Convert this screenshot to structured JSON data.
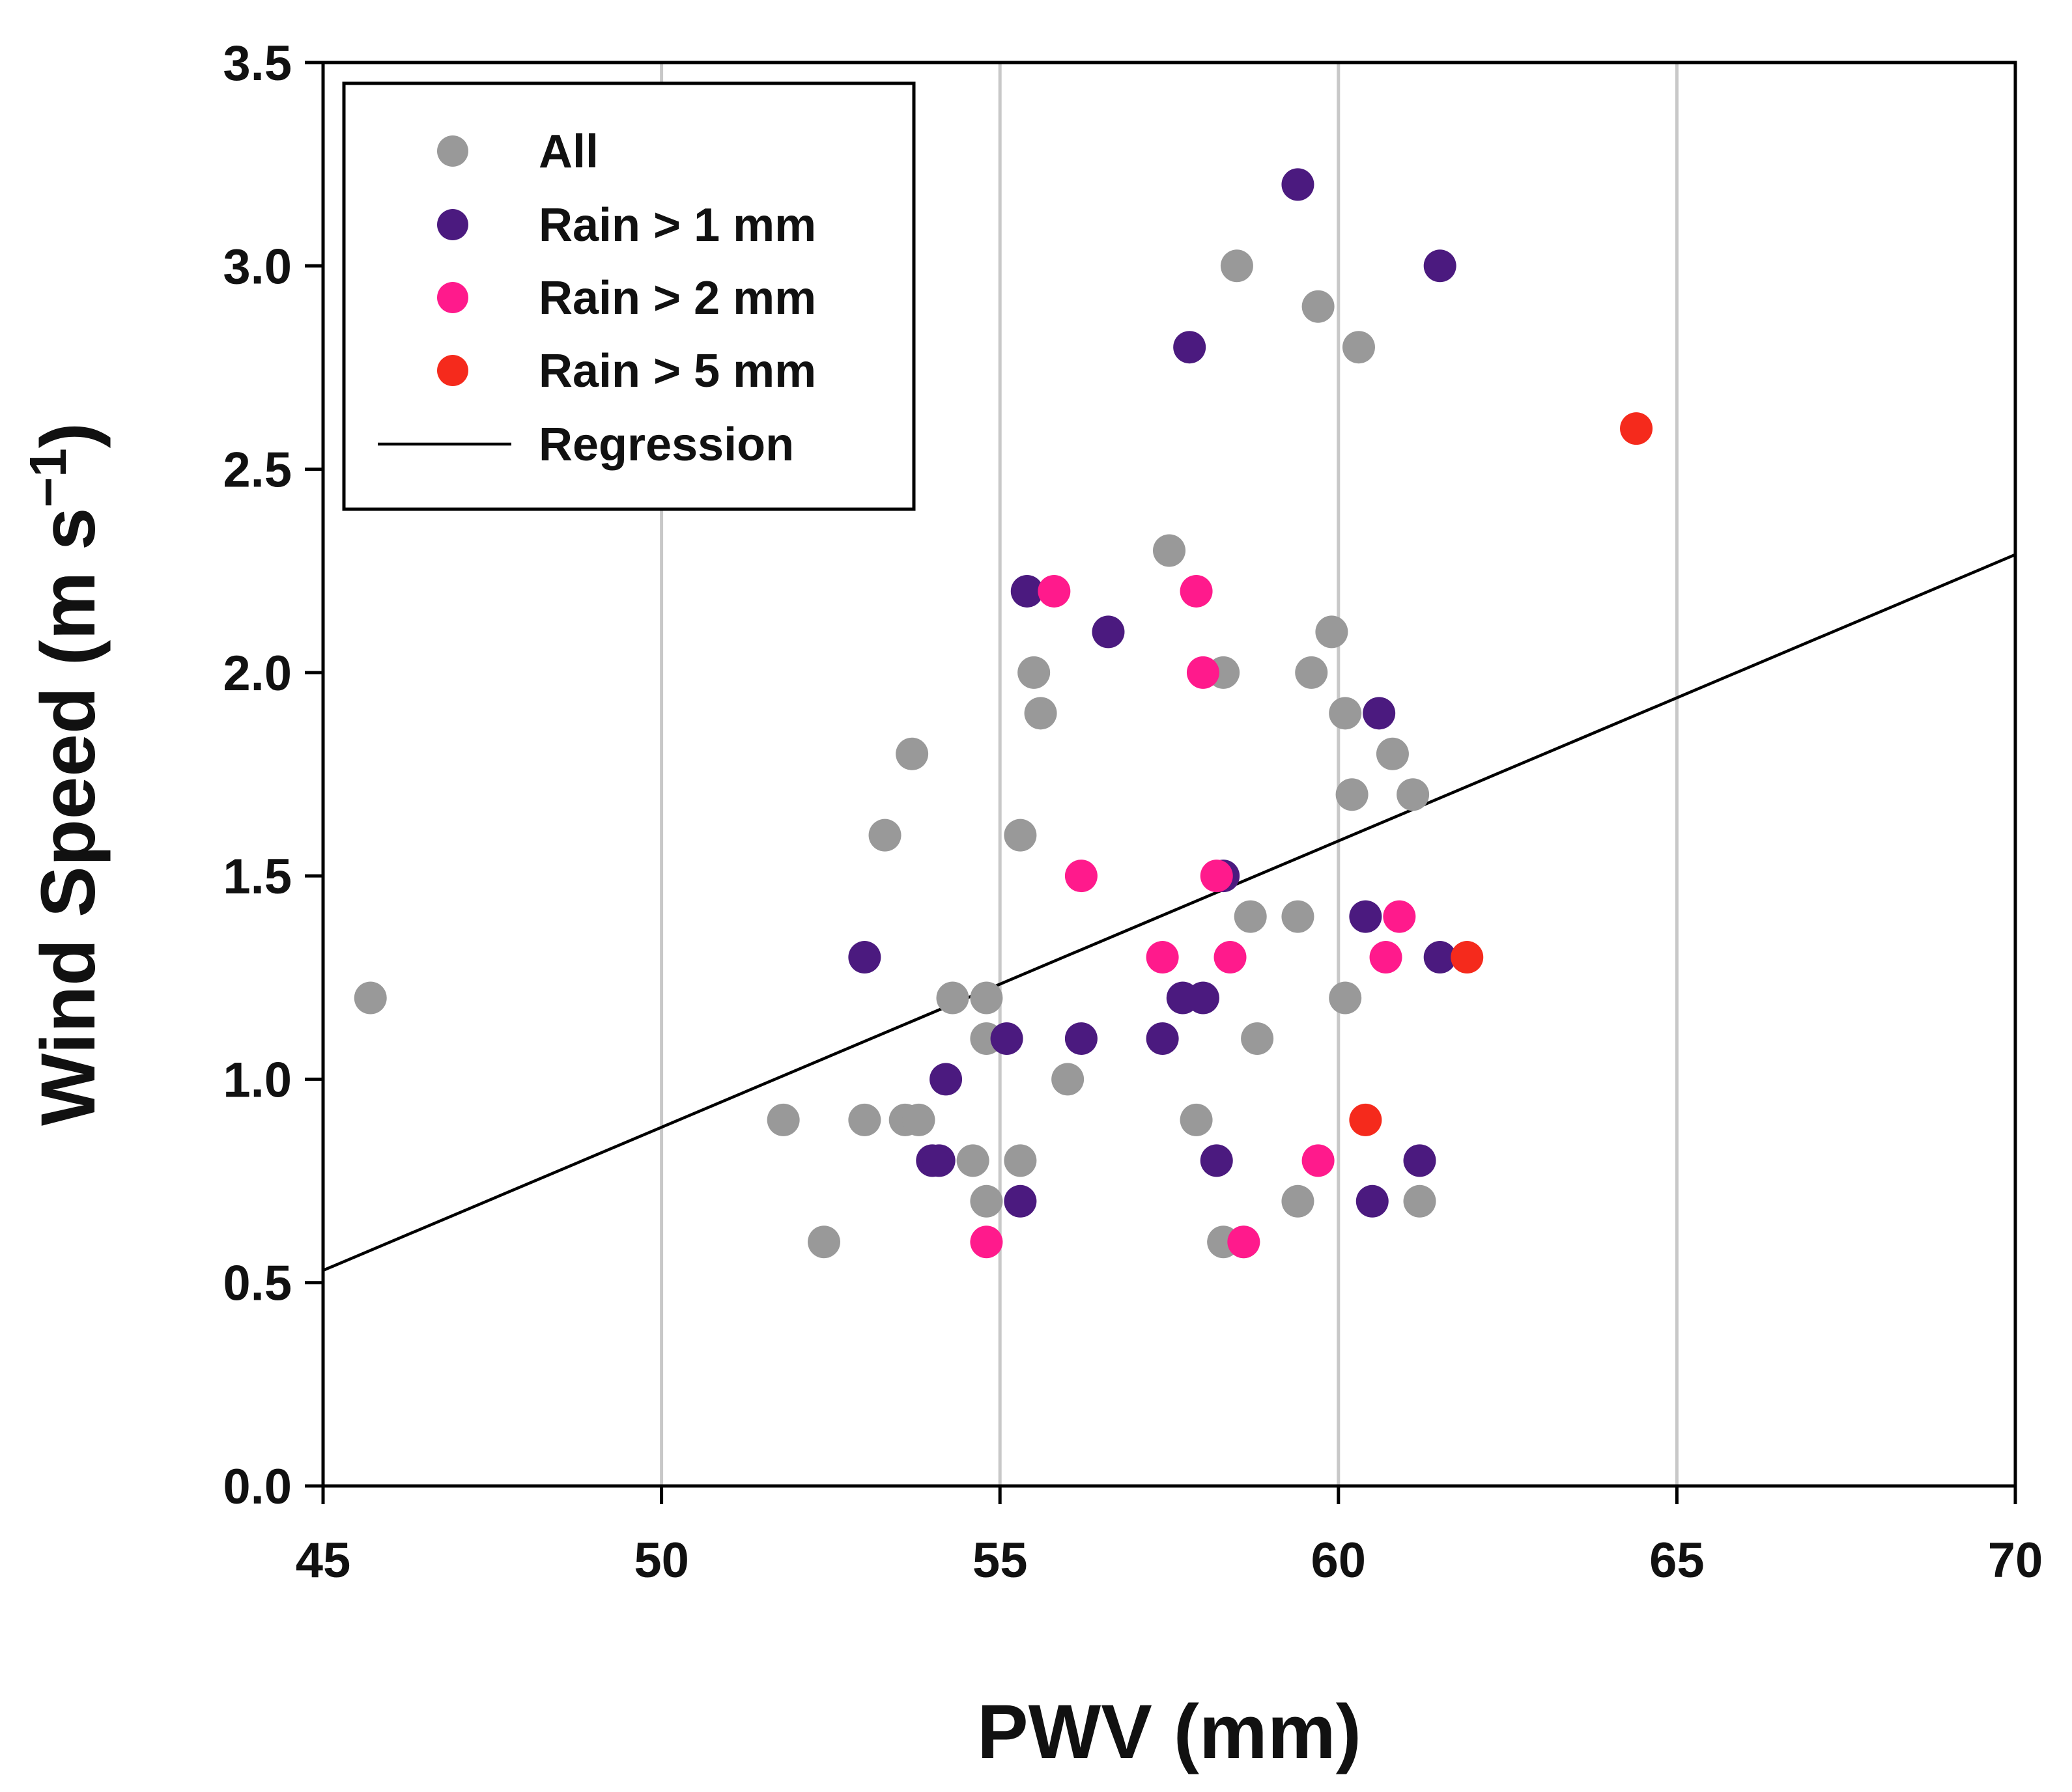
{
  "chart_data": {
    "type": "scatter",
    "title": "",
    "xlabel": "PWV (mm)",
    "ylabel": {
      "main": "Wind Speed (m s",
      "sup": "−1",
      "close": ")"
    },
    "xlim": [
      45,
      70
    ],
    "ylim": [
      0,
      3.5
    ],
    "x_ticks": [
      "45",
      "50",
      "55",
      "60",
      "65",
      "70"
    ],
    "y_ticks": [
      "0.0",
      "0.5",
      "1.0",
      "1.5",
      "2.0",
      "2.5",
      "3.0",
      "3.5"
    ],
    "vertical_grid": true,
    "legend_position": "top-left",
    "colors": {
      "all": "#999999",
      "rain1": "#4b1a7f",
      "rain2": "#ff1a8c",
      "rain5": "#f52a1c",
      "regression": "#000000"
    },
    "series": [
      {
        "name": "All",
        "key": "all",
        "points": [
          [
            45.7,
            1.2
          ],
          [
            51.8,
            0.9
          ],
          [
            52.4,
            0.6
          ],
          [
            53.0,
            0.9
          ],
          [
            53.3,
            1.6
          ],
          [
            53.6,
            0.9
          ],
          [
            53.7,
            1.8
          ],
          [
            53.8,
            0.9
          ],
          [
            54.3,
            1.2
          ],
          [
            54.6,
            0.8
          ],
          [
            54.8,
            1.2
          ],
          [
            54.8,
            1.1
          ],
          [
            54.8,
            0.7
          ],
          [
            55.3,
            1.6
          ],
          [
            55.3,
            0.8
          ],
          [
            55.5,
            2.0
          ],
          [
            55.6,
            1.9
          ],
          [
            56.0,
            1.0
          ],
          [
            57.5,
            2.3
          ],
          [
            57.9,
            0.9
          ],
          [
            58.3,
            2.0
          ],
          [
            58.3,
            0.6
          ],
          [
            58.5,
            3.0
          ],
          [
            58.6,
            0.6
          ],
          [
            58.7,
            1.4
          ],
          [
            58.8,
            1.1
          ],
          [
            59.4,
            1.4
          ],
          [
            59.4,
            0.7
          ],
          [
            59.6,
            2.0
          ],
          [
            59.7,
            2.9
          ],
          [
            59.9,
            2.1
          ],
          [
            60.1,
            1.9
          ],
          [
            60.1,
            1.2
          ],
          [
            60.2,
            1.7
          ],
          [
            60.3,
            2.8
          ],
          [
            60.8,
            1.8
          ],
          [
            61.1,
            1.7
          ],
          [
            61.2,
            0.7
          ]
        ]
      },
      {
        "name": "Rain > 1 mm",
        "key": "rain1",
        "points": [
          [
            53.0,
            1.3
          ],
          [
            54.0,
            0.8
          ],
          [
            54.1,
            0.8
          ],
          [
            54.2,
            1.0
          ],
          [
            55.1,
            1.1
          ],
          [
            55.3,
            0.7
          ],
          [
            55.4,
            2.2
          ],
          [
            56.2,
            1.1
          ],
          [
            56.6,
            2.1
          ],
          [
            57.4,
            1.1
          ],
          [
            57.7,
            1.2
          ],
          [
            57.8,
            2.8
          ],
          [
            58.0,
            1.2
          ],
          [
            58.2,
            0.8
          ],
          [
            58.3,
            1.5
          ],
          [
            59.4,
            3.2
          ],
          [
            60.4,
            1.4
          ],
          [
            60.5,
            0.7
          ],
          [
            60.6,
            1.9
          ],
          [
            61.2,
            0.8
          ],
          [
            61.5,
            1.3
          ],
          [
            61.5,
            3.0
          ]
        ]
      },
      {
        "name": "Rain > 2 mm",
        "key": "rain2",
        "points": [
          [
            54.8,
            0.6
          ],
          [
            55.8,
            2.2
          ],
          [
            56.2,
            1.5
          ],
          [
            57.4,
            1.3
          ],
          [
            57.9,
            2.2
          ],
          [
            58.0,
            2.0
          ],
          [
            58.2,
            1.5
          ],
          [
            58.4,
            1.3
          ],
          [
            58.6,
            0.6
          ],
          [
            59.7,
            0.8
          ],
          [
            60.7,
            1.3
          ],
          [
            60.9,
            1.4
          ]
        ]
      },
      {
        "name": "Rain > 5 mm",
        "key": "rain5",
        "points": [
          [
            60.4,
            0.9
          ],
          [
            61.9,
            1.3
          ],
          [
            64.4,
            2.6
          ]
        ]
      }
    ],
    "regression": {
      "name": "Regression",
      "x": [
        45,
        70
      ],
      "y": [
        0.53,
        2.29
      ]
    }
  }
}
